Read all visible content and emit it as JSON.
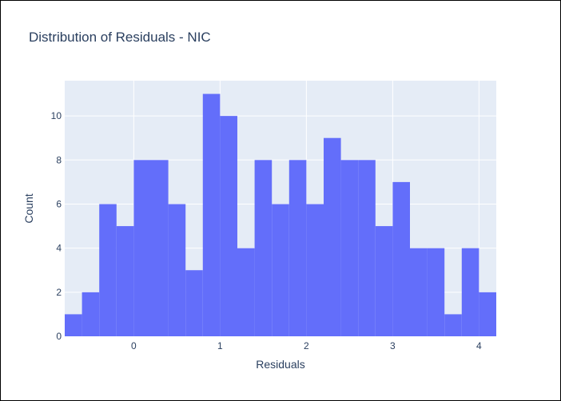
{
  "chart_data": {
    "type": "bar",
    "title": "Distribution of Residuals - NIC",
    "xlabel": "Residuals",
    "ylabel": "Count",
    "xlim": [
      -0.8,
      4.2
    ],
    "ylim": [
      0,
      11.6
    ],
    "bin_width": 0.2,
    "bins": [
      {
        "start": -0.8,
        "count": 1
      },
      {
        "start": -0.6,
        "count": 2
      },
      {
        "start": -0.4,
        "count": 6
      },
      {
        "start": -0.2,
        "count": 5
      },
      {
        "start": 0.0,
        "count": 8
      },
      {
        "start": 0.2,
        "count": 8
      },
      {
        "start": 0.4,
        "count": 6
      },
      {
        "start": 0.6,
        "count": 3
      },
      {
        "start": 0.8,
        "count": 11
      },
      {
        "start": 1.0,
        "count": 10
      },
      {
        "start": 1.2,
        "count": 4
      },
      {
        "start": 1.4,
        "count": 8
      },
      {
        "start": 1.6,
        "count": 6
      },
      {
        "start": 1.8,
        "count": 8
      },
      {
        "start": 2.0,
        "count": 6
      },
      {
        "start": 2.2,
        "count": 9
      },
      {
        "start": 2.4,
        "count": 8
      },
      {
        "start": 2.6,
        "count": 8
      },
      {
        "start": 2.8,
        "count": 5
      },
      {
        "start": 3.0,
        "count": 7
      },
      {
        "start": 3.2,
        "count": 4
      },
      {
        "start": 3.4,
        "count": 4
      },
      {
        "start": 3.6,
        "count": 1
      },
      {
        "start": 3.8,
        "count": 4
      },
      {
        "start": 4.0,
        "count": 2
      }
    ],
    "x_ticks": [
      0,
      1,
      2,
      3,
      4
    ],
    "y_ticks": [
      0,
      2,
      4,
      6,
      8,
      10
    ],
    "bar_color": "#636efa",
    "plot_bg": "#e5ecf6",
    "grid": true
  }
}
